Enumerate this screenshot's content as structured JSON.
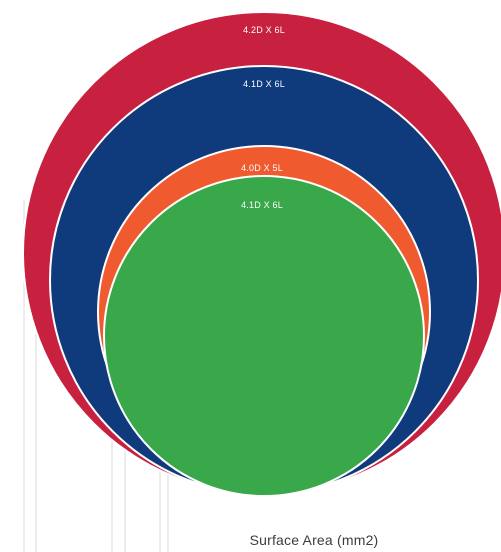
{
  "colors": {
    "crimson": "#c8203f",
    "navy": "#0f3a7c",
    "orange": "#ef5b2f",
    "green": "#38a84a",
    "guide_lines": "#d8d8d8",
    "ring_border": "#ffffff"
  },
  "circles": [
    {
      "label": "4.2D X 6L",
      "color_key": "crimson"
    },
    {
      "label": "4.1D X 6L",
      "color_key": "navy"
    },
    {
      "label": "4.0D X 5L",
      "color_key": "orange"
    },
    {
      "label": "4.1D X 6L",
      "color_key": "green"
    }
  ],
  "caption": "Surface Area (mm2)"
}
